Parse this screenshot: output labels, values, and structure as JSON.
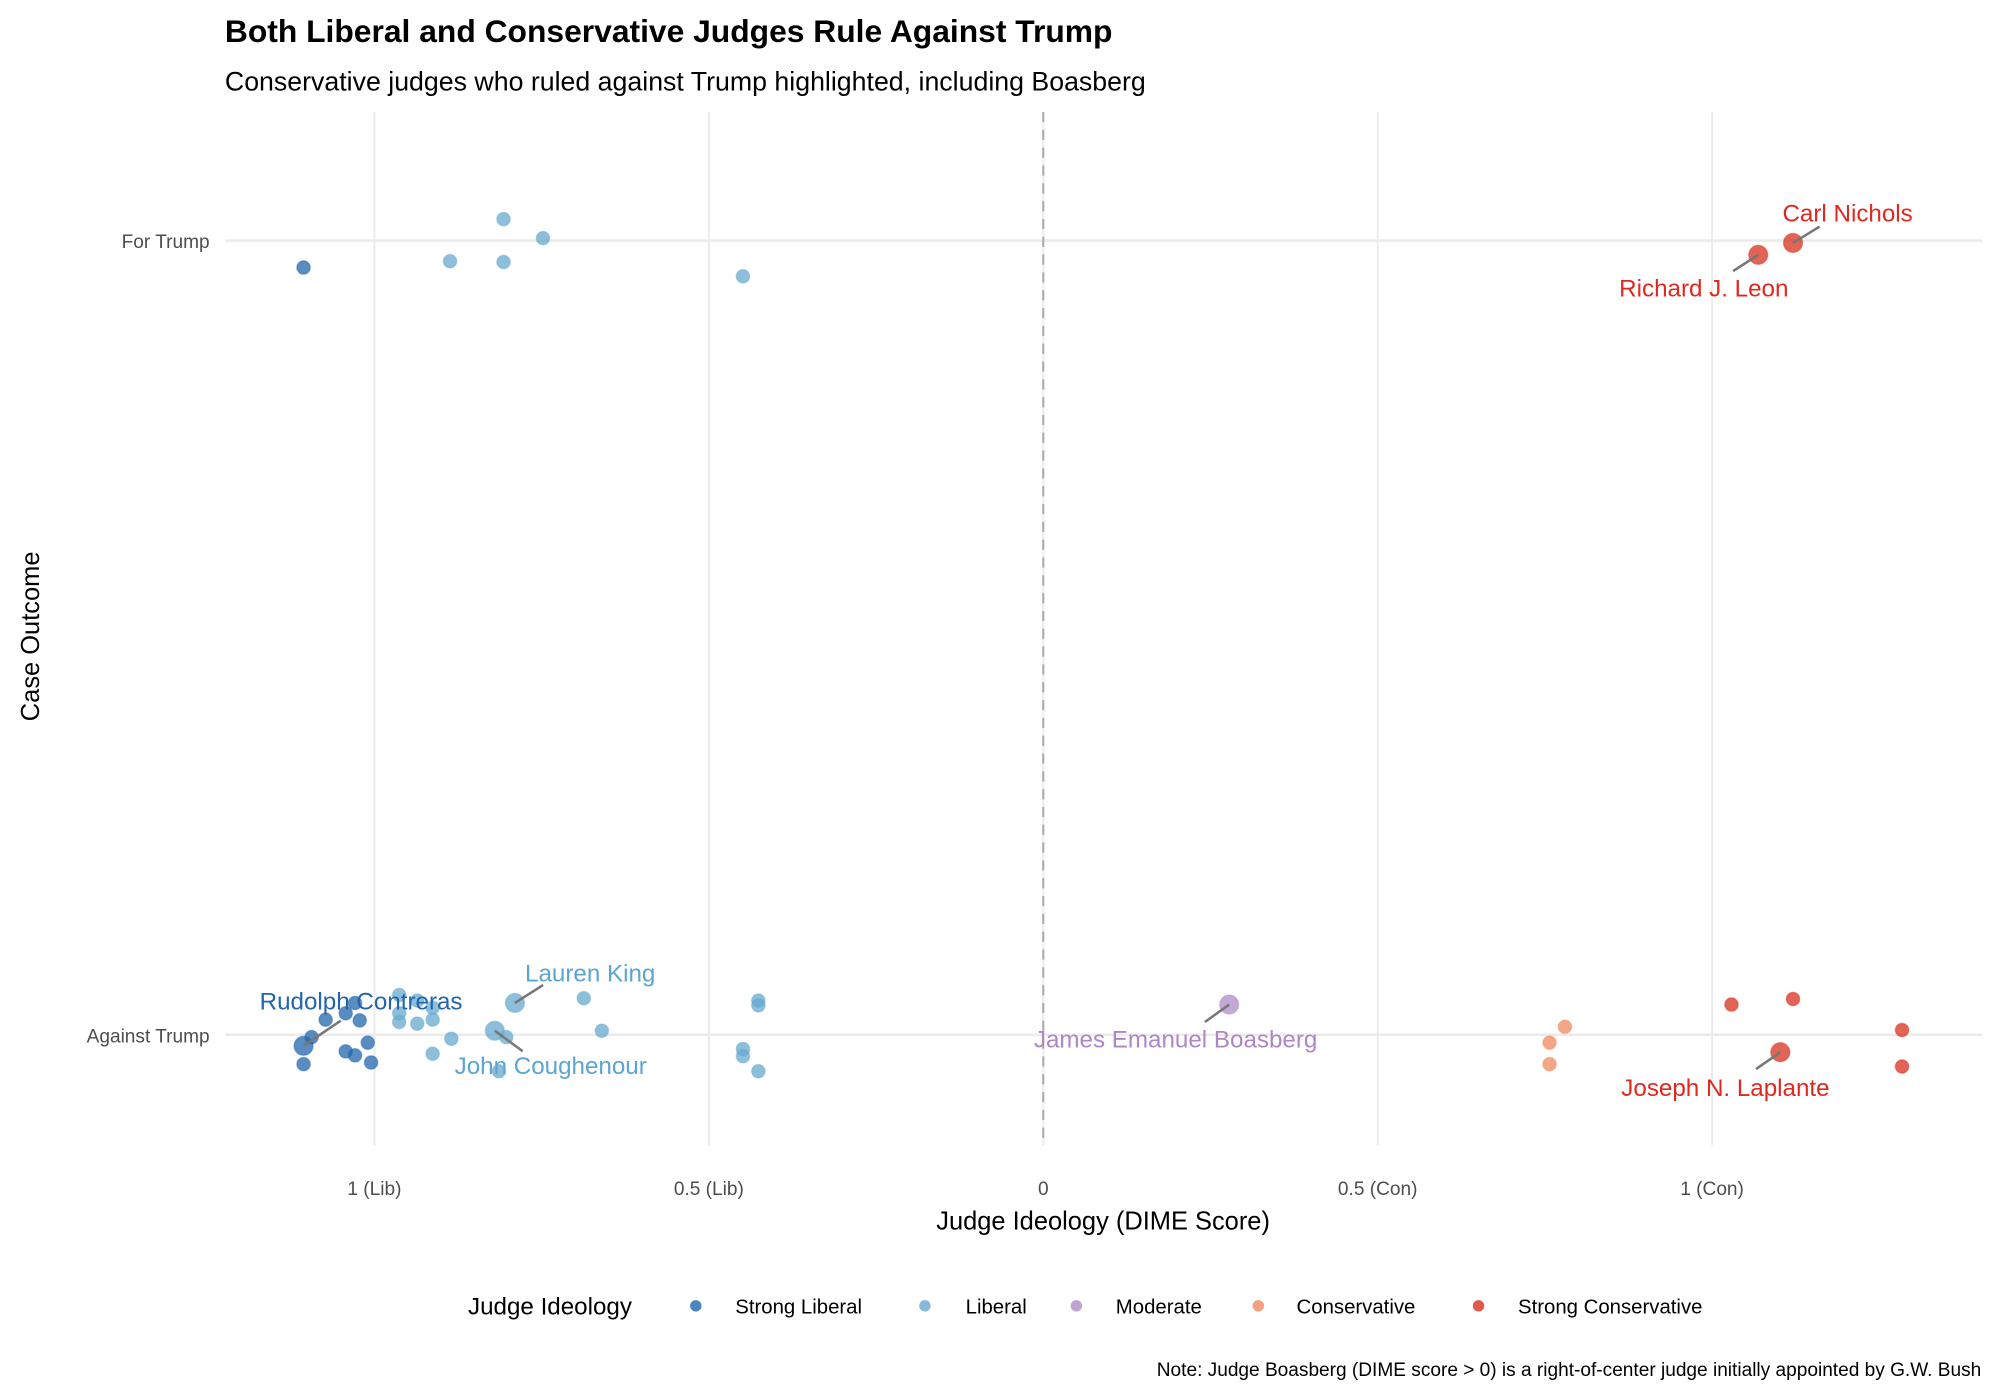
{
  "chart_data": {
    "type": "scatter",
    "title": "Both Liberal and Conservative Judges Rule Against Trump",
    "subtitle": "Conservative judges who ruled against Trump highlighted, including Boasberg",
    "xlabel": "Judge Ideology (DIME Score)",
    "ylabel": "Case Outcome",
    "xlim": [
      -1.22,
      1.4
    ],
    "x_ticks": [
      {
        "value": -1,
        "label": "1 (Lib)"
      },
      {
        "value": -0.5,
        "label": "0.5 (Lib)"
      },
      {
        "value": 0,
        "label": "0"
      },
      {
        "value": 0.5,
        "label": "0.5 (Con)"
      },
      {
        "value": 1,
        "label": "1 (Con)"
      }
    ],
    "y_categories": [
      "Against Trump",
      "For Trump"
    ],
    "reference_line": {
      "x": 0,
      "style": "dashed"
    },
    "grid": true,
    "legend": {
      "title": "Judge Ideology",
      "position": "bottom",
      "entries": [
        {
          "name": "Strong Liberal",
          "color": "#2166ac"
        },
        {
          "name": "Liberal",
          "color": "#67a9cf"
        },
        {
          "name": "Moderate",
          "color": "#b08bc8"
        },
        {
          "name": "Conservative",
          "color": "#ef8a62"
        },
        {
          "name": "Strong Conservative",
          "color": "#d7301f"
        }
      ]
    },
    "note": "Note: Judge Boasberg (DIME score > 0) is a right-of-center judge initially appointed by G.W. Bush",
    "points": [
      {
        "x": -1.106,
        "y": 0.966,
        "group": "Strong Liberal"
      },
      {
        "x": -0.807,
        "y": 1.027,
        "group": "Liberal"
      },
      {
        "x": -0.748,
        "y": 1.003,
        "group": "Liberal"
      },
      {
        "x": -0.887,
        "y": 0.974,
        "group": "Liberal"
      },
      {
        "x": -0.807,
        "y": 0.973,
        "group": "Liberal"
      },
      {
        "x": -0.449,
        "y": 0.955,
        "group": "Liberal"
      },
      {
        "x": 1.069,
        "y": 0.982,
        "group": "Strong Conservative",
        "label": "Richard J. Leon"
      },
      {
        "x": 1.121,
        "y": 0.997,
        "group": "Strong Conservative",
        "label": "Carl Nichols"
      },
      {
        "x": -1.106,
        "y": -0.014,
        "group": "Strong Liberal",
        "label": "Rudolph Contreras"
      },
      {
        "x": -1.094,
        "y": -0.003,
        "group": "Strong Liberal"
      },
      {
        "x": -1.073,
        "y": 0.019,
        "group": "Strong Liberal"
      },
      {
        "x": -1.043,
        "y": 0.027,
        "group": "Strong Liberal"
      },
      {
        "x": -1.029,
        "y": 0.04,
        "group": "Strong Liberal"
      },
      {
        "x": -1.022,
        "y": 0.018,
        "group": "Strong Liberal"
      },
      {
        "x": -1.01,
        "y": -0.01,
        "group": "Strong Liberal"
      },
      {
        "x": -1.043,
        "y": -0.021,
        "group": "Strong Liberal"
      },
      {
        "x": -1.029,
        "y": -0.026,
        "group": "Strong Liberal"
      },
      {
        "x": -1.106,
        "y": -0.037,
        "group": "Strong Liberal"
      },
      {
        "x": -1.005,
        "y": -0.035,
        "group": "Strong Liberal"
      },
      {
        "x": -0.963,
        "y": 0.05,
        "group": "Liberal"
      },
      {
        "x": -0.936,
        "y": 0.043,
        "group": "Liberal"
      },
      {
        "x": -0.963,
        "y": 0.027,
        "group": "Liberal"
      },
      {
        "x": -0.963,
        "y": 0.016,
        "group": "Liberal"
      },
      {
        "x": -0.936,
        "y": 0.014,
        "group": "Liberal"
      },
      {
        "x": -0.913,
        "y": 0.034,
        "group": "Liberal"
      },
      {
        "x": -0.913,
        "y": 0.019,
        "group": "Liberal"
      },
      {
        "x": -0.885,
        "y": -0.005,
        "group": "Liberal"
      },
      {
        "x": -0.913,
        "y": -0.024,
        "group": "Liberal"
      },
      {
        "x": -0.814,
        "y": -0.046,
        "group": "Liberal"
      },
      {
        "x": -0.82,
        "y": 0.005,
        "group": "Liberal",
        "label": "John Coughenour"
      },
      {
        "x": -0.803,
        "y": -0.003,
        "group": "Liberal"
      },
      {
        "x": -0.79,
        "y": 0.04,
        "group": "Liberal",
        "label": "Lauren King"
      },
      {
        "x": -0.687,
        "y": 0.046,
        "group": "Liberal"
      },
      {
        "x": -0.66,
        "y": 0.005,
        "group": "Liberal"
      },
      {
        "x": -0.426,
        "y": 0.043,
        "group": "Liberal"
      },
      {
        "x": -0.426,
        "y": 0.037,
        "group": "Liberal"
      },
      {
        "x": -0.449,
        "y": -0.018,
        "group": "Liberal"
      },
      {
        "x": -0.449,
        "y": -0.027,
        "group": "Liberal"
      },
      {
        "x": -0.426,
        "y": -0.046,
        "group": "Liberal"
      },
      {
        "x": 0.278,
        "y": 0.038,
        "group": "Moderate",
        "label": "James Emanuel Boasberg"
      },
      {
        "x": 0.78,
        "y": 0.01,
        "group": "Conservative"
      },
      {
        "x": 0.757,
        "y": -0.01,
        "group": "Conservative"
      },
      {
        "x": 0.757,
        "y": -0.037,
        "group": "Conservative"
      },
      {
        "x": 1.029,
        "y": 0.038,
        "group": "Strong Conservative"
      },
      {
        "x": 1.121,
        "y": 0.045,
        "group": "Strong Conservative"
      },
      {
        "x": 1.284,
        "y": 0.006,
        "group": "Strong Conservative"
      },
      {
        "x": 1.102,
        "y": -0.022,
        "group": "Strong Conservative",
        "label": "Joseph N. Laplante"
      },
      {
        "x": 1.284,
        "y": -0.04,
        "group": "Strong Conservative"
      }
    ]
  }
}
